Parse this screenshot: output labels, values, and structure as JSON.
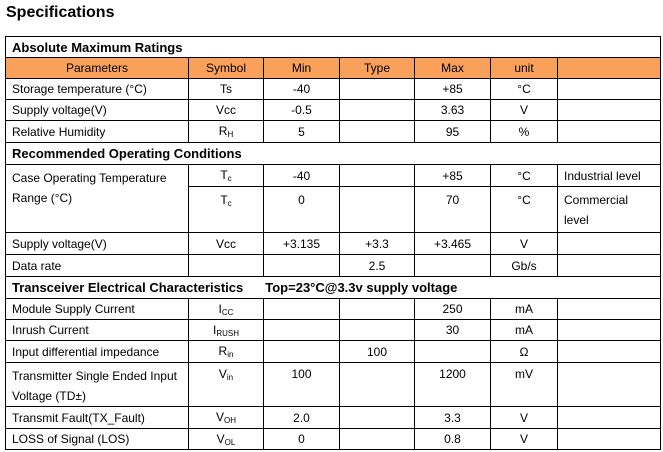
{
  "title": "Specifications",
  "sections": [
    {
      "heading": "Absolute Maximum Ratings",
      "columns": [
        "Parameters",
        "Symbol",
        "Min",
        "Type",
        "Max",
        "unit"
      ],
      "rows": [
        {
          "parameter": "Storage temperature (°C)",
          "symbol": "Ts",
          "min": "-40",
          "max": "+85",
          "unit": "°C"
        },
        {
          "parameter": "Supply voltage(V)",
          "symbol": "Vcc",
          "min": "-0.5",
          "max": "3.63",
          "unit": "V"
        },
        {
          "parameter": "Relative Humidity",
          "symbol": {
            "main": "R",
            "sub": "H"
          },
          "min": "5",
          "max": "95",
          "unit": "%"
        }
      ]
    },
    {
      "heading": "Recommended Operating Conditions",
      "rows": [
        {
          "parameter": "Case Operating Temperature Range (°C)",
          "symbol": {
            "main": "T",
            "sub": "c"
          },
          "min": "-40",
          "max": "+85",
          "unit": "°C",
          "note": "Industrial level"
        },
        {
          "symbol": {
            "main": "T",
            "sub": "c"
          },
          "min": "0",
          "max": "70",
          "unit": "°C",
          "note": "Commercial level"
        },
        {
          "parameter": "Supply voltage(V)",
          "symbol": "Vcc",
          "min": "+3.135",
          "typ": "+3.3",
          "max": "+3.465",
          "unit": "V"
        },
        {
          "parameter": "Data rate",
          "typ": "2.5",
          "unit": "Gb/s"
        }
      ]
    },
    {
      "heading": "Transceiver Electrical Characteristics",
      "condition": "Top=23°C@3.3v supply voltage",
      "rows": [
        {
          "parameter": "Module Supply Current",
          "symbol": {
            "main": "I",
            "sub": "CC"
          },
          "max": "250",
          "unit": "mA"
        },
        {
          "parameter": "Inrush Current",
          "symbol": {
            "main": "I",
            "sub": "RUSH"
          },
          "max": "30",
          "unit": "mA"
        },
        {
          "parameter": "Input differential impedance",
          "symbol": {
            "main": "R",
            "sub": "in"
          },
          "typ": "100",
          "unit": "Ω"
        },
        {
          "parameter": "Transmitter Single Ended Input Voltage (TD±)",
          "symbol": {
            "main": "V",
            "sub": "in"
          },
          "min": "100",
          "max": "1200",
          "unit": "mV"
        },
        {
          "parameter": "Transmit Fault(TX_Fault)",
          "symbol": {
            "main": "V",
            "sub": "OH"
          },
          "min": "2.0",
          "max": "3.3",
          "unit": "V"
        },
        {
          "parameter": "LOSS of Signal (LOS)",
          "symbol": {
            "main": "V",
            "sub": "OL"
          },
          "min": "0",
          "max": "0.8",
          "unit": "V"
        }
      ]
    }
  ]
}
